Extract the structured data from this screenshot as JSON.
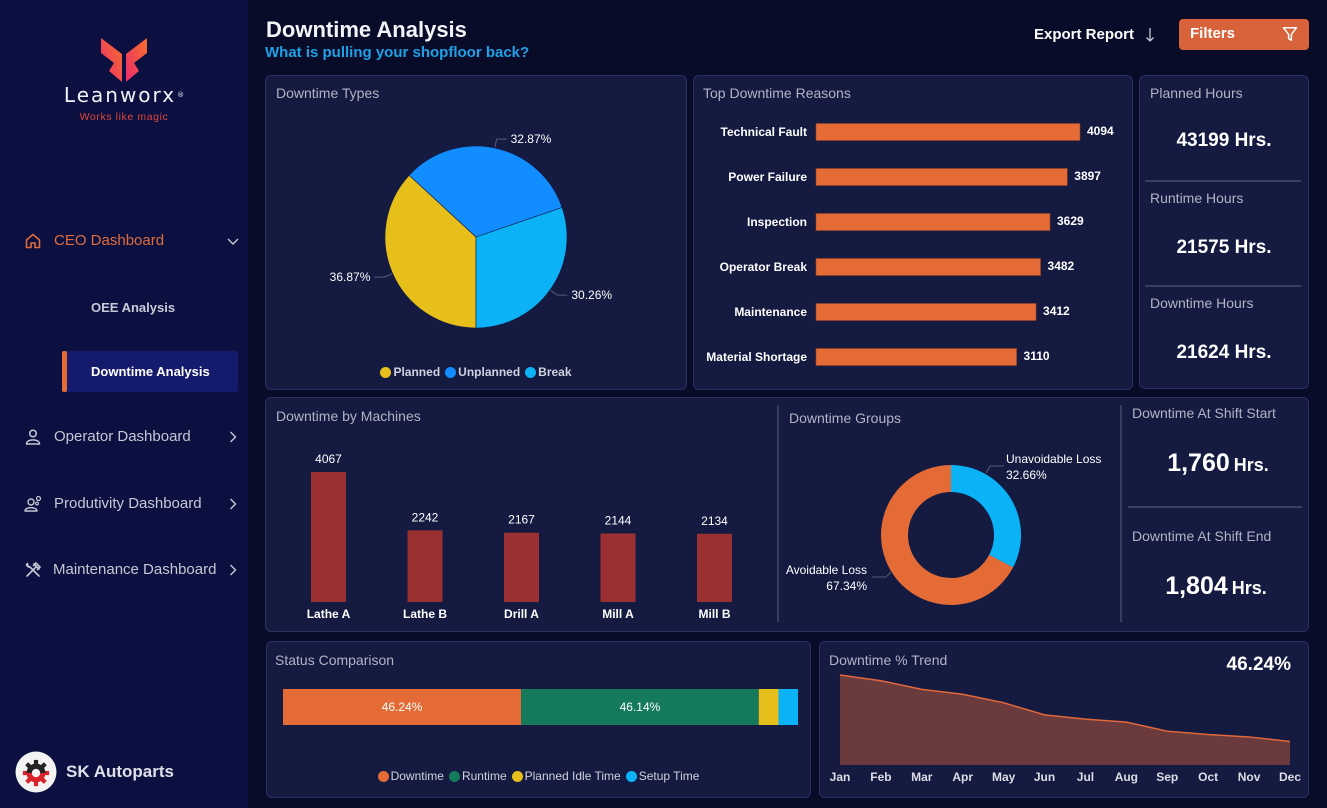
{
  "app": {
    "brand": "Leanworx",
    "registered_mark": "®",
    "tagline": "Works like magic",
    "company_name": "SK Autoparts"
  },
  "sidebar": {
    "nav": [
      {
        "label": "CEO Dashboard",
        "icon": "home-icon",
        "state": "expanded",
        "children": [
          {
            "label": "OEE Analysis",
            "active": false
          },
          {
            "label": "Downtime Analysis",
            "active": true
          }
        ]
      },
      {
        "label": "Operator Dashboard",
        "icon": "user-icon",
        "state": "collapsed"
      },
      {
        "label": "Produtivity Dashboard",
        "icon": "user-gear-icon",
        "state": "collapsed"
      },
      {
        "label": "Maintenance Dashboard",
        "icon": "tools-icon",
        "state": "collapsed"
      }
    ]
  },
  "header": {
    "title": "Downtime Analysis",
    "subtitle": "What is pulling your shopfloor back?",
    "export_label": "Export Report",
    "export_icon": "download-arrow-icon",
    "filters_label": "Filters",
    "filters_icon": "funnel-icon"
  },
  "kpis": {
    "planned_hours": {
      "label": "Planned Hours",
      "value": "43199",
      "unit": "Hrs."
    },
    "runtime_hours": {
      "label": "Runtime Hours",
      "value": "21575",
      "unit": "Hrs."
    },
    "downtime_hours": {
      "label": "Downtime Hours",
      "value": "21624",
      "unit": "Hrs."
    },
    "shift_start": {
      "label": "Downtime At Shift Start",
      "value": "1,760",
      "unit": "Hrs."
    },
    "shift_end": {
      "label": "Downtime At Shift End",
      "value": "1,804",
      "unit": "Hrs."
    }
  },
  "colors": {
    "accent": "#e46b36",
    "filters_button": "#d8623a",
    "subtitle": "#1ea1e6",
    "active_nav": "#141b6c",
    "planned": "#e6bf1a",
    "unplanned": "#118dff",
    "break": "#0bb2f5",
    "runtime": "#157a5c",
    "machine_bar": "#9a3032"
  },
  "chart_data": [
    {
      "type": "pie",
      "title": "Downtime Types",
      "categories": [
        "Planned",
        "Unplanned",
        "Break"
      ],
      "values": [
        36.87,
        32.87,
        30.26
      ],
      "unit": "%",
      "data_labels": [
        "36.87%",
        "32.87%",
        "30.26%"
      ],
      "colors": [
        "#e6bf1a",
        "#118dff",
        "#0bb2f5"
      ],
      "legend": "bottom-center"
    },
    {
      "type": "bar",
      "orientation": "horizontal",
      "title": "Top Downtime Reasons",
      "categories": [
        "Technical Fault",
        "Power Failure",
        "Inspection",
        "Operator Break",
        "Maintenance",
        "Material Shortage"
      ],
      "values": [
        4094,
        3897,
        3629,
        3482,
        3412,
        3110
      ],
      "xlim": [
        0,
        4094
      ],
      "color": "#e46b36",
      "grid": false
    },
    {
      "type": "bar",
      "orientation": "vertical",
      "title": "Downtime by Machines",
      "categories": [
        "Lathe A",
        "Lathe B",
        "Drill A",
        "Mill A",
        "Mill B"
      ],
      "values": [
        4067,
        2242,
        2167,
        2144,
        2134
      ],
      "ylim": [
        0,
        4067
      ],
      "color": "#9a3032",
      "grid": false
    },
    {
      "type": "pie",
      "donut": true,
      "title": "Downtime Groups",
      "categories": [
        "Unavoidable Loss",
        "Avoidable Loss"
      ],
      "values": [
        32.66,
        67.34
      ],
      "unit": "%",
      "data_labels": [
        "32.66%",
        "67.34%"
      ],
      "colors": [
        "#0bb2f5",
        "#e46b36"
      ]
    },
    {
      "type": "bar",
      "orientation": "horizontal",
      "stacked": true,
      "title": "Status Comparison",
      "categories": [
        "Downtime",
        "Runtime",
        "Planned Idle Time",
        "Setup Time"
      ],
      "values": [
        46.24,
        46.14,
        3.84,
        3.78
      ],
      "unit": "%",
      "data_labels": [
        "46.24%",
        "46.14%",
        "",
        ""
      ],
      "colors": [
        "#e46b36",
        "#157a5c",
        "#e6bf1a",
        "#0bb2f5"
      ],
      "legend": "bottom-center"
    },
    {
      "type": "area",
      "title": "Downtime % Trend",
      "kpi_value": "46.24%",
      "x": [
        "Jan",
        "Feb",
        "Mar",
        "Apr",
        "May",
        "Jun",
        "Jul",
        "Aug",
        "Sep",
        "Oct",
        "Nov",
        "Dec"
      ],
      "values": [
        78.3,
        73.3,
        65.8,
        61.5,
        54.1,
        43.6,
        39.9,
        37.3,
        29.4,
        26.5,
        24.4,
        20.4
      ],
      "unit": "%",
      "ylim": [
        0,
        80
      ],
      "fill_color": "#6b3a3d",
      "line_color": "#e0683a",
      "grid": false
    }
  ]
}
